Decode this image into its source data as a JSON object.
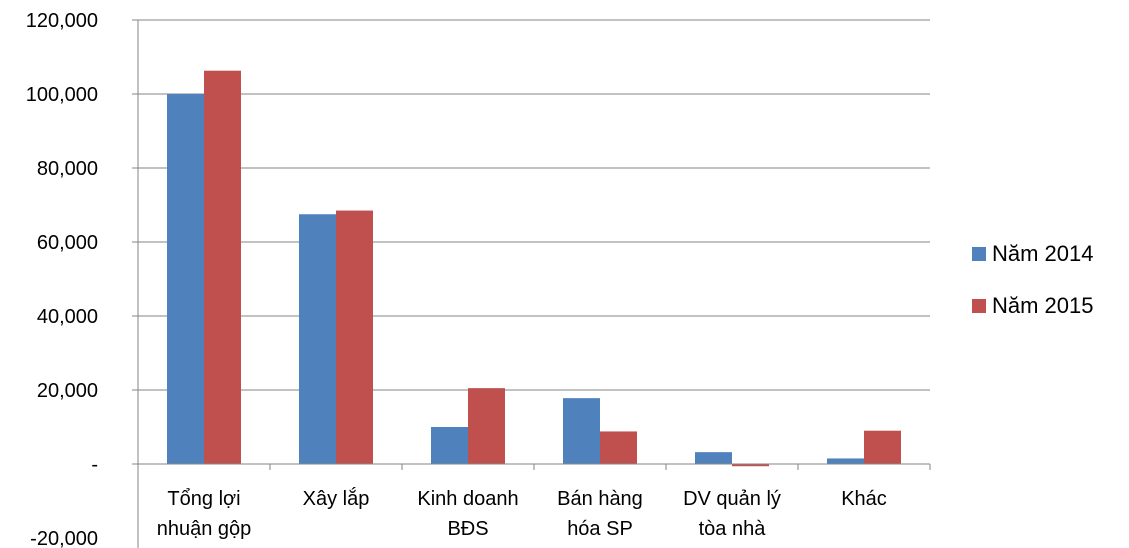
{
  "chart_data": {
    "type": "bar",
    "categories": [
      [
        "Tổng lợi",
        "nhuận gộp"
      ],
      [
        "Xây lắp"
      ],
      [
        "Kinh doanh",
        "BĐS"
      ],
      [
        "Bán hàng",
        "hóa SP"
      ],
      [
        "DV quản lý",
        "tòa nhà"
      ],
      [
        "Khác"
      ]
    ],
    "series": [
      {
        "name": "Năm 2014",
        "color": "#4F81BD",
        "values": [
          100000,
          67500,
          10000,
          17800,
          3200,
          1500
        ]
      },
      {
        "name": "Năm 2015",
        "color": "#C0504D",
        "values": [
          106300,
          68500,
          20500,
          8800,
          -600,
          9000
        ]
      }
    ],
    "yticks": [
      {
        "value": 120000,
        "label": "120,000"
      },
      {
        "value": 100000,
        "label": "100,000"
      },
      {
        "value": 80000,
        "label": "80,000"
      },
      {
        "value": 60000,
        "label": "60,000"
      },
      {
        "value": 40000,
        "label": "40,000"
      },
      {
        "value": 20000,
        "label": "20,000"
      },
      {
        "value": 0,
        "label": "-"
      },
      {
        "value": -20000,
        "label": "-20,000"
      }
    ],
    "ylim": [
      -20000,
      120000
    ],
    "grid": true,
    "legend_position": "right"
  }
}
